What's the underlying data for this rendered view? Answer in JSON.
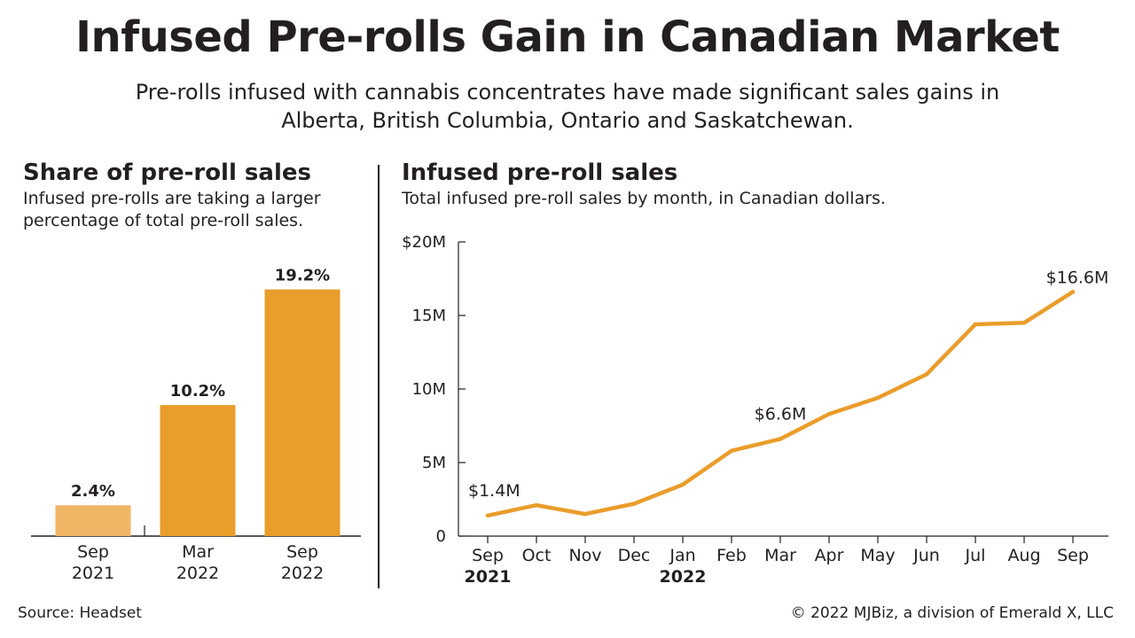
{
  "title": "Infused Pre-rolls Gain in Canadian Market",
  "subtitle": "Pre-rolls infused with cannabis concentrates have made significant sales gains in Alberta, British Columbia, Ontario and Saskatchewan.",
  "left_panel": {
    "title": "Share of pre-roll sales",
    "subtitle": "Infused pre-rolls are taking a larger percentage of total pre-roll sales."
  },
  "right_panel": {
    "title": "Infused pre-roll sales",
    "subtitle": "Total infused pre-roll sales by month, in Canadian dollars."
  },
  "footer": {
    "source": "Source: Headset",
    "copyright": "© 2022 MJBiz, a division of Emerald X, LLC"
  },
  "colors": {
    "bar_light": "#f0b665",
    "bar_dark": "#e99d2b",
    "line": "#e99d2b",
    "text": "#231f20"
  },
  "chart_data": [
    {
      "type": "bar",
      "categories": [
        [
          "Sep",
          "2021"
        ],
        [
          "Mar",
          "2022"
        ],
        [
          "Sep",
          "2022"
        ]
      ],
      "values": [
        2.4,
        10.2,
        19.2
      ],
      "data_labels": [
        "2.4%",
        "10.2%",
        "19.2%"
      ],
      "unit": "%",
      "title": "Share of pre-roll sales",
      "ylim": [
        0,
        20
      ]
    },
    {
      "type": "line",
      "x": [
        "Sep",
        "Oct",
        "Nov",
        "Dec",
        "Jan",
        "Feb",
        "Mar",
        "Apr",
        "May",
        "Jun",
        "Jul",
        "Aug",
        "Sep"
      ],
      "x_year_labels": {
        "0": "2021",
        "4": "2022"
      },
      "values": [
        1.4,
        2.1,
        1.5,
        2.2,
        3.5,
        5.8,
        6.6,
        8.3,
        9.4,
        11.0,
        14.4,
        14.5,
        16.6
      ],
      "annotations": [
        {
          "index": 0,
          "label": "$1.4M"
        },
        {
          "index": 6,
          "label": "$6.6M"
        },
        {
          "index": 12,
          "label": "$16.6M"
        }
      ],
      "yticks": [
        0,
        5,
        10,
        15,
        20
      ],
      "ytick_labels": [
        "0",
        "5M",
        "10M",
        "15M",
        "$20M"
      ],
      "ylim": [
        0,
        20
      ],
      "title": "Infused pre-roll sales",
      "grid": false
    }
  ]
}
